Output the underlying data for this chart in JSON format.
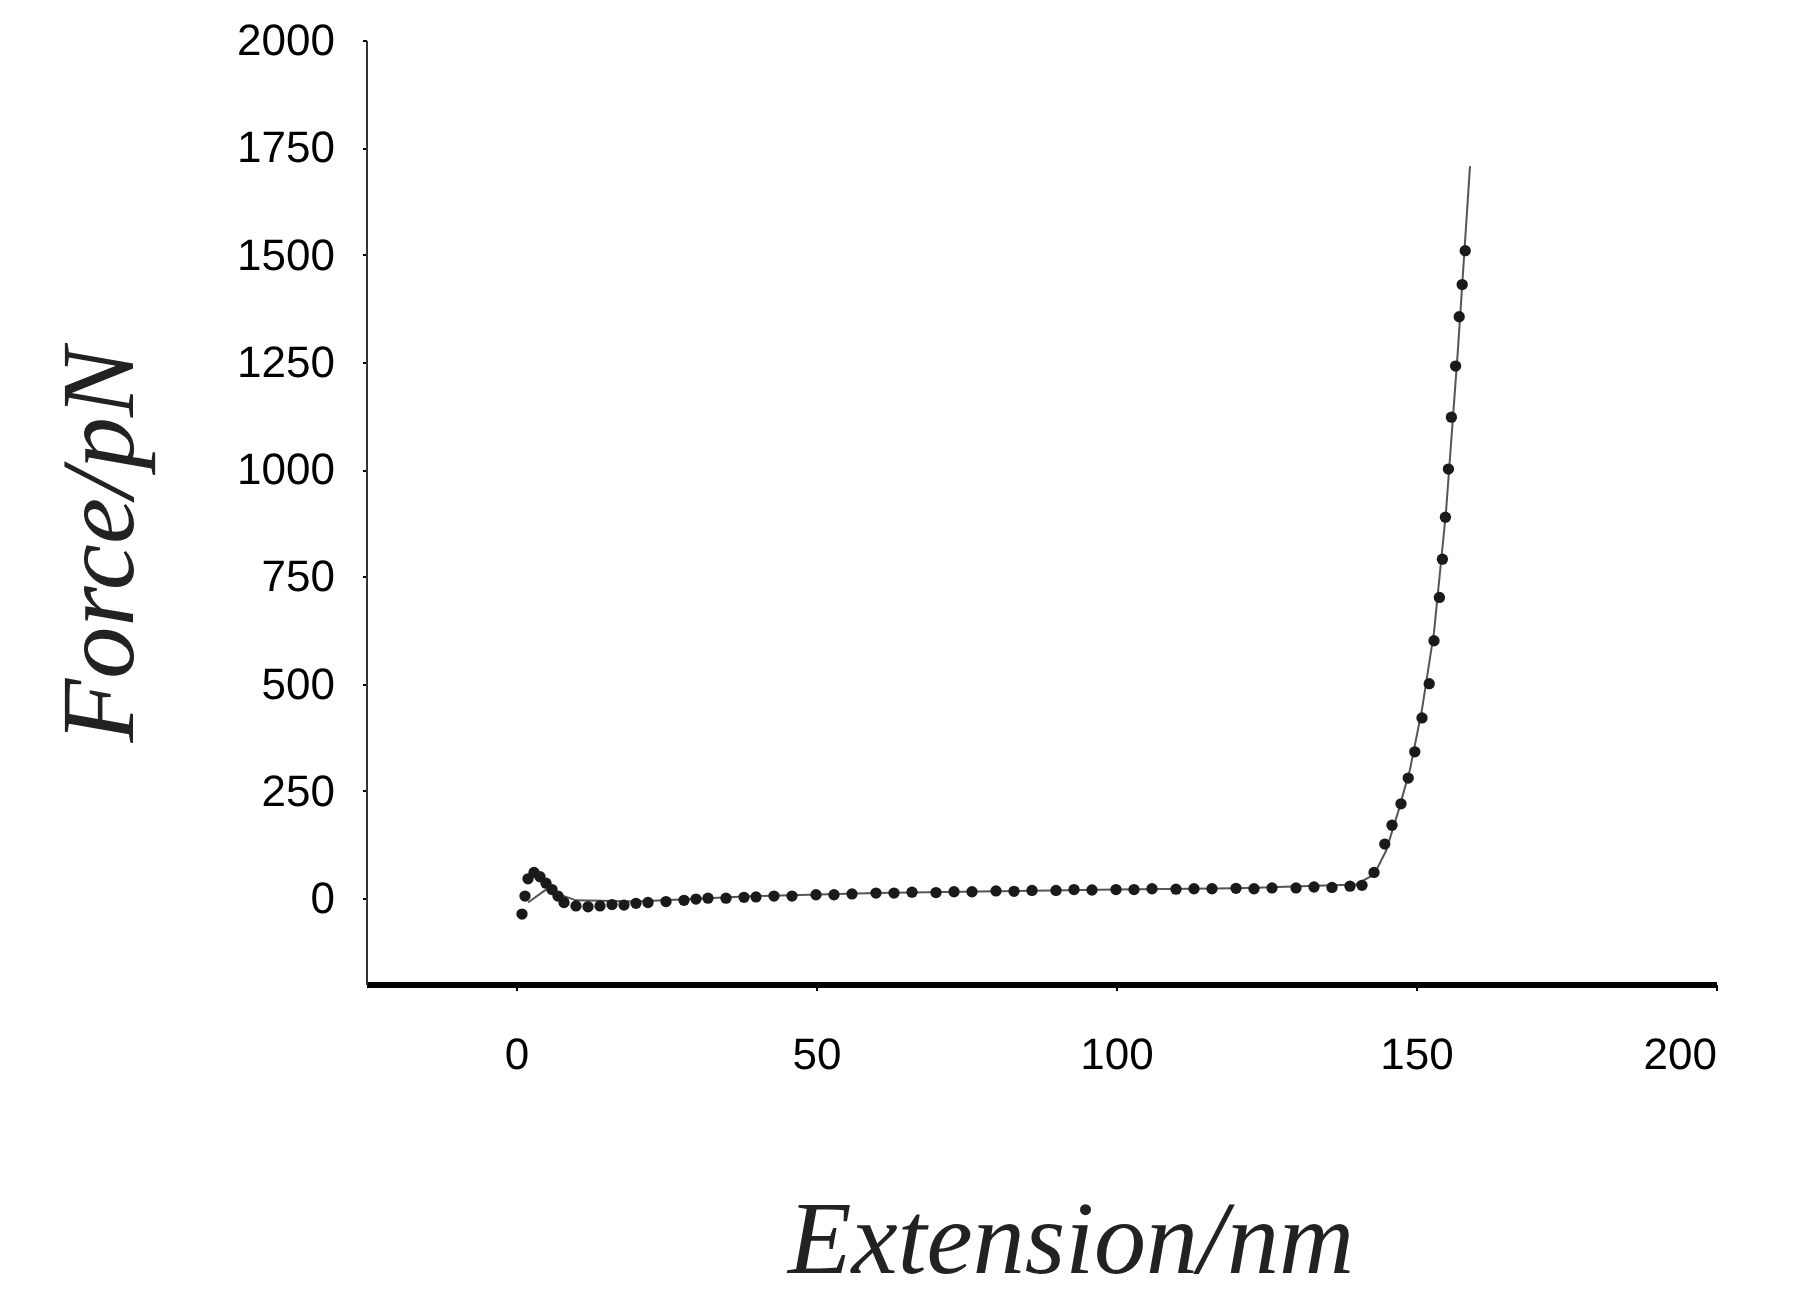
{
  "chart_data": {
    "type": "scatter",
    "xlabel": "Extension/nm",
    "ylabel": "Force/pN",
    "xlim": [
      -25,
      200
    ],
    "xticks": [
      0,
      50,
      100,
      150,
      200
    ],
    "ylim": [
      -200,
      2000
    ],
    "yticks": [
      0,
      250,
      500,
      750,
      1000,
      1250,
      1500,
      1750,
      2000
    ],
    "grid": false,
    "series": [
      {
        "type": "line",
        "color": "#555555",
        "line_style": "solid",
        "marker": "none",
        "x": [
          2,
          5,
          10,
          20,
          40,
          60,
          80,
          100,
          120,
          140,
          143,
          145,
          147,
          149,
          151,
          153,
          155,
          157,
          159
        ],
        "values": [
          -10,
          20,
          -5,
          -8,
          5,
          12,
          16,
          20,
          23,
          32,
          55,
          110,
          200,
          300,
          440,
          620,
          900,
          1280,
          1706
        ]
      },
      {
        "color": "#1a1a1a",
        "marker": "circle",
        "x": [
          1,
          1.5,
          2,
          3,
          4,
          5,
          6,
          7,
          8,
          10,
          12,
          14,
          16,
          18,
          20,
          22,
          25,
          28,
          30,
          32,
          35,
          38,
          40,
          43,
          46,
          50,
          53,
          56,
          60,
          63,
          66,
          70,
          73,
          76,
          80,
          83,
          86,
          90,
          93,
          96,
          100,
          103,
          106,
          110,
          113,
          116,
          120,
          123,
          126,
          130,
          133,
          136,
          139,
          141,
          143,
          144.8,
          146,
          147.5,
          148.7,
          149.8,
          151,
          152.2,
          153,
          153.9,
          154.4,
          154.9,
          155.4,
          155.9,
          156.6,
          157.2,
          157.7,
          158.2
        ],
        "values": [
          -37,
          5,
          45,
          60,
          50,
          35,
          20,
          5,
          -10,
          -18,
          -20,
          -18,
          -15,
          -16,
          -12,
          -10,
          -8,
          -5,
          -2,
          0,
          0,
          2,
          3,
          5,
          5,
          8,
          8,
          10,
          12,
          12,
          14,
          13,
          15,
          15,
          17,
          16,
          18,
          18,
          20,
          19,
          20,
          20,
          22,
          21,
          22,
          22,
          23,
          22,
          24,
          24,
          26,
          25,
          28,
          30,
          60,
          126,
          170,
          220,
          280,
          341,
          420,
          500,
          600,
          701,
          790,
          888,
          1000,
          1121,
          1240,
          1355,
          1430,
          1509
        ]
      }
    ]
  }
}
